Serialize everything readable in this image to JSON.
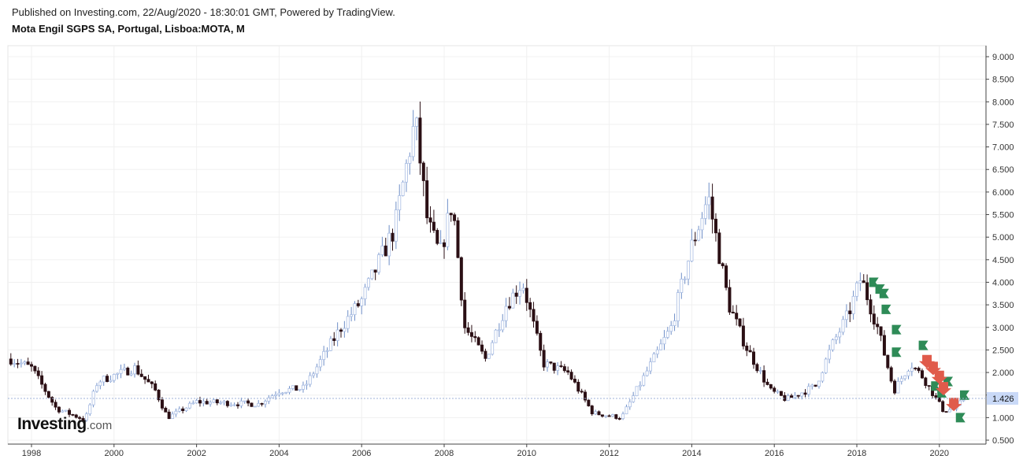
{
  "header": {
    "published": "Published on Investing.com, 22/Aug/2020 - 18:30:01 GMT, Powered by TradingView.",
    "title": "Mota Engil SGPS SA, Portugal, Lisboa:MOTA, M"
  },
  "logo": {
    "main": "Investing",
    "suffix": ".com"
  },
  "colors": {
    "up": "#a9bde3",
    "down": "#2b0f14",
    "grid": "#f0f0f0",
    "axis": "#444444",
    "price_box": "#c9d9f7",
    "buy_marker": "#2e8b57",
    "sell_marker": "#e05b4b"
  },
  "chart_data": {
    "type": "candlestick",
    "timeframe": "M",
    "x_ticks": [
      "1998",
      "2000",
      "2002",
      "2004",
      "2006",
      "2008",
      "2010",
      "2012",
      "2014",
      "2016",
      "2018",
      "2020"
    ],
    "y_ticks": [
      "9.000",
      "8.500",
      "8.000",
      "7.500",
      "7.000",
      "6.500",
      "6.000",
      "5.500",
      "5.000",
      "4.500",
      "4.000",
      "3.500",
      "3.000",
      "2.500",
      "2.000",
      "1.500",
      "1.000",
      "0.500"
    ],
    "ylim": [
      0.5,
      9.0
    ],
    "last_price": "1.426",
    "anchors": [
      [
        1997.5,
        2.3
      ],
      [
        1998.0,
        2.1
      ],
      [
        1998.6,
        1.2
      ],
      [
        1999.3,
        0.95
      ],
      [
        1999.6,
        1.8
      ],
      [
        2000.5,
        2.1
      ],
      [
        2001.0,
        1.6
      ],
      [
        2001.3,
        1.0
      ],
      [
        2002.0,
        1.35
      ],
      [
        2003.5,
        1.3
      ],
      [
        2004.0,
        1.6
      ],
      [
        2004.6,
        1.65
      ],
      [
        2005.5,
        3.0
      ],
      [
        2006.0,
        3.6
      ],
      [
        2006.8,
        5.2
      ],
      [
        2007.3,
        7.6
      ],
      [
        2007.6,
        5.3
      ],
      [
        2007.9,
        4.6
      ],
      [
        2008.2,
        5.8
      ],
      [
        2008.5,
        3.0
      ],
      [
        2009.0,
        2.3
      ],
      [
        2009.5,
        3.5
      ],
      [
        2009.9,
        4.0
      ],
      [
        2010.4,
        2.2
      ],
      [
        2011.0,
        2.0
      ],
      [
        2011.6,
        1.1
      ],
      [
        2012.3,
        1.0
      ],
      [
        2012.9,
        2.0
      ],
      [
        2013.5,
        3.0
      ],
      [
        2014.0,
        4.8
      ],
      [
        2014.4,
        5.9
      ],
      [
        2014.9,
        3.5
      ],
      [
        2015.3,
        2.6
      ],
      [
        2015.9,
        1.6
      ],
      [
        2016.3,
        1.4
      ],
      [
        2017.0,
        1.7
      ],
      [
        2017.4,
        2.6
      ],
      [
        2017.8,
        3.3
      ],
      [
        2018.1,
        4.1
      ],
      [
        2018.5,
        3.0
      ],
      [
        2018.9,
        1.6
      ],
      [
        2019.3,
        2.2
      ],
      [
        2019.6,
        1.9
      ],
      [
        2020.1,
        1.15
      ],
      [
        2020.4,
        1.2
      ],
      [
        2020.6,
        1.426
      ]
    ],
    "signals": [
      {
        "type": "buy",
        "x": 2018.3,
        "y": 4.0
      },
      {
        "type": "buy",
        "x": 2018.45,
        "y": 3.85
      },
      {
        "type": "buy",
        "x": 2018.55,
        "y": 3.75
      },
      {
        "type": "buy",
        "x": 2018.6,
        "y": 3.4
      },
      {
        "type": "buy",
        "x": 2018.85,
        "y": 2.95
      },
      {
        "type": "buy",
        "x": 2018.85,
        "y": 2.45
      },
      {
        "type": "buy",
        "x": 2019.5,
        "y": 2.6
      },
      {
        "type": "buy",
        "x": 2019.8,
        "y": 1.7
      },
      {
        "type": "buy",
        "x": 2019.95,
        "y": 1.55
      },
      {
        "type": "buy",
        "x": 2020.1,
        "y": 1.8
      },
      {
        "type": "buy",
        "x": 2020.5,
        "y": 1.5
      },
      {
        "type": "buy",
        "x": 2020.4,
        "y": 1.0
      },
      {
        "type": "sell",
        "x": 2019.7,
        "y": 2.25
      },
      {
        "type": "sell",
        "x": 2019.85,
        "y": 2.1
      },
      {
        "type": "sell",
        "x": 2020.0,
        "y": 1.9
      },
      {
        "type": "sell",
        "x": 2020.1,
        "y": 1.65
      },
      {
        "type": "sell",
        "x": 2020.35,
        "y": 1.3
      }
    ]
  }
}
